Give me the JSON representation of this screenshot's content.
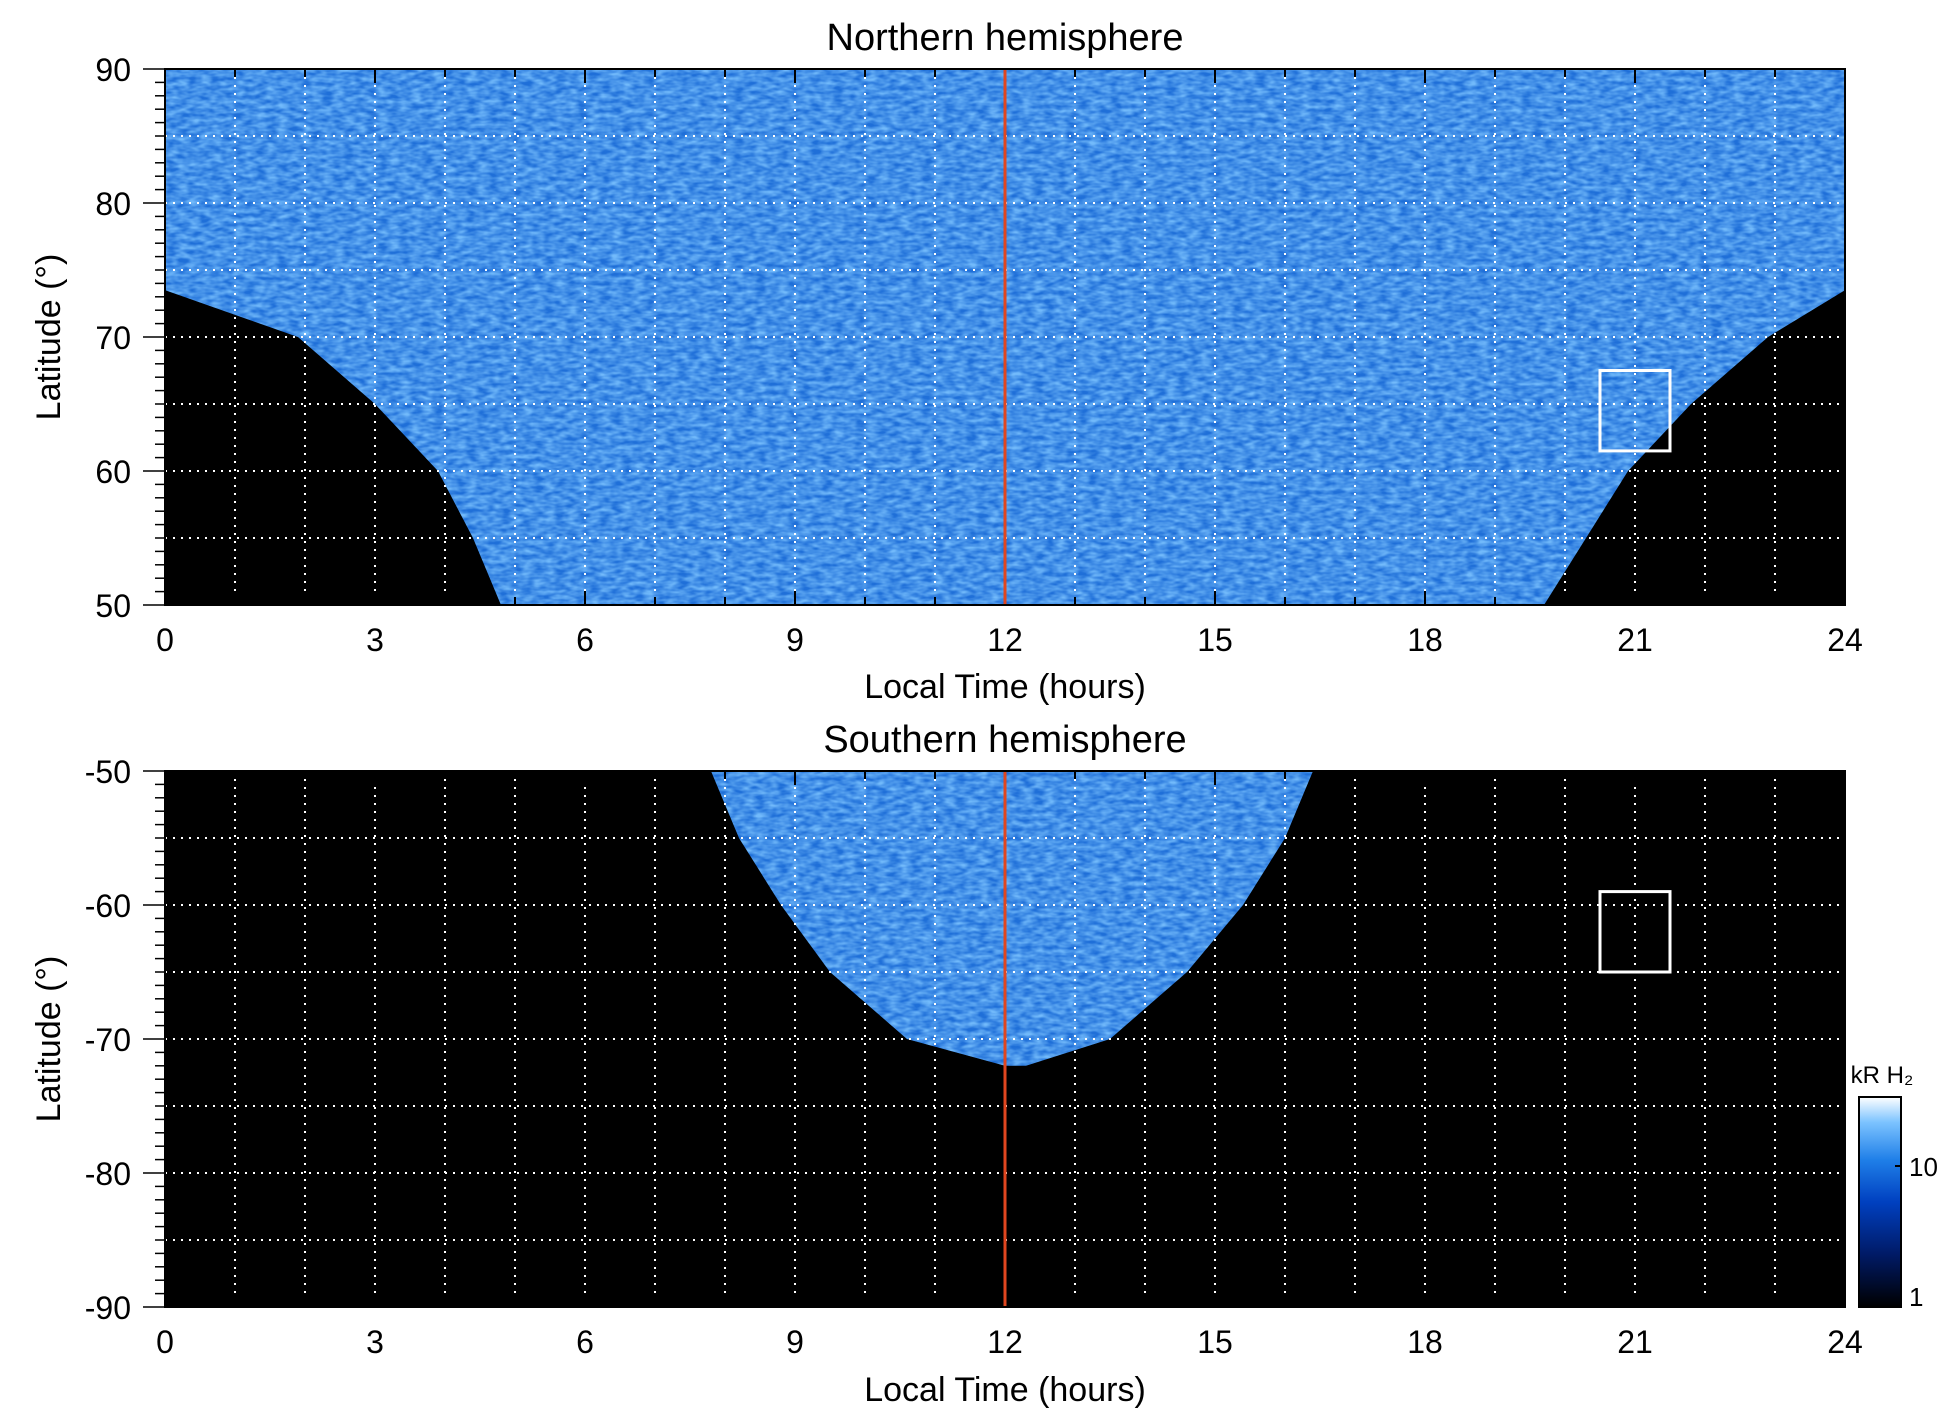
{
  "chart_data": [
    {
      "type": "heatmap",
      "title": "Northern hemisphere",
      "xlabel": "Local Time (hours)",
      "ylabel": "Latitude (°)",
      "xlim": [
        0,
        24
      ],
      "ylim": [
        50,
        90
      ],
      "xticks": [
        0,
        3,
        6,
        9,
        12,
        15,
        18,
        21,
        24
      ],
      "xtick_labels": [
        "0",
        "3",
        "6",
        "9",
        "12",
        "15",
        "18",
        "21",
        "24"
      ],
      "yticks": [
        50,
        60,
        70,
        80,
        90
      ],
      "ytick_labels": [
        "50",
        "60",
        "70",
        "80",
        "90"
      ],
      "grid": true,
      "grid_x_step": 1,
      "grid_y_step": 5,
      "marker_line_x": 12,
      "marker_line_color": "#e0461f",
      "highlight_box": {
        "x": [
          20.5,
          21.5
        ],
        "y": [
          61.5,
          67.5
        ]
      },
      "coverage": {
        "rows": [
          {
            "lat": 50,
            "lt": [
              4.8,
              19.7
            ]
          },
          {
            "lat": 55,
            "lt": [
              4.4,
              20.3
            ]
          },
          {
            "lat": 60,
            "lt": [
              3.9,
              20.9
            ]
          },
          {
            "lat": 65,
            "lt": [
              3.0,
              21.8
            ]
          },
          {
            "lat": 70,
            "lt": [
              1.9,
              22.9
            ]
          },
          {
            "lat": 73.5,
            "lt": [
              0.0,
              24.0
            ]
          },
          {
            "lat": 90,
            "lt": [
              0.0,
              24.0
            ]
          }
        ]
      }
    },
    {
      "type": "heatmap",
      "title": "Southern hemisphere",
      "xlabel": "Local Time (hours)",
      "ylabel": "Latitude (°)",
      "xlim": [
        0,
        24
      ],
      "ylim": [
        -90,
        -50
      ],
      "xticks": [
        0,
        3,
        6,
        9,
        12,
        15,
        18,
        21,
        24
      ],
      "xtick_labels": [
        "0",
        "3",
        "6",
        "9",
        "12",
        "15",
        "18",
        "21",
        "24"
      ],
      "yticks": [
        -90,
        -80,
        -70,
        -60,
        -50
      ],
      "ytick_labels": [
        "-90",
        "-80",
        "-70",
        "-60",
        "-50"
      ],
      "grid": true,
      "grid_x_step": 1,
      "grid_y_step": 5,
      "marker_line_x": 12,
      "marker_line_color": "#e0461f",
      "highlight_box": {
        "x": [
          20.5,
          21.5
        ],
        "y": [
          -65,
          -59
        ]
      },
      "coverage": {
        "rows": [
          {
            "lat": -50,
            "lt": [
              7.8,
              16.4
            ]
          },
          {
            "lat": -55,
            "lt": [
              8.2,
              16.0
            ]
          },
          {
            "lat": -60,
            "lt": [
              8.8,
              15.4
            ]
          },
          {
            "lat": -65,
            "lt": [
              9.5,
              14.6
            ]
          },
          {
            "lat": -70,
            "lt": [
              10.6,
              13.5
            ]
          },
          {
            "lat": -72,
            "lt": [
              12.0,
              12.3
            ]
          }
        ]
      }
    }
  ],
  "colorbar": {
    "label": "kR H₂",
    "scale": "log",
    "range": [
      1,
      30
    ],
    "tick_labels": [
      "10",
      "1"
    ],
    "colors": [
      "#000000",
      "#001a66",
      "#0040c0",
      "#1f7fe8",
      "#7cc3ff",
      "#ffffff"
    ]
  }
}
